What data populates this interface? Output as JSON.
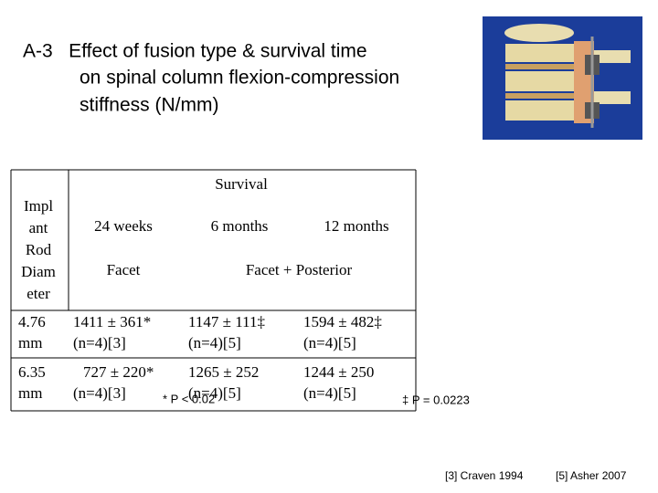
{
  "title": [
    "A-3   Effect of fusion type & survival time",
    "on spinal column flexion-compression",
    "stiffness (N/mm)"
  ],
  "table": {
    "corner": [
      "Impl",
      "ant",
      "Rod",
      "Diam",
      "eter"
    ],
    "group_header": "Survival",
    "columns": [
      "24 weeks",
      "6 months",
      "12 months"
    ],
    "fusion": [
      "Facet",
      "Facet + Posterior"
    ],
    "rows": [
      {
        "label": [
          "4.76",
          "mm"
        ],
        "cells": [
          [
            "1411 ± 361*",
            "(n=4)[3]"
          ],
          [
            "1147 ± 111‡",
            "(n=4)[5]"
          ],
          [
            "1594 ± 482‡",
            "(n=4)[5]"
          ]
        ]
      },
      {
        "label": [
          "6.35",
          "mm"
        ],
        "cells": [
          [
            "727 ± 220*",
            "(n=4)[3]"
          ],
          [
            "1265 ± 252",
            "(n=4)[5]"
          ],
          [
            "1244 ± 250",
            "(n=4)[5]"
          ]
        ]
      }
    ]
  },
  "footnotes": [
    "* P < 0.02",
    "‡ P = 0.0223"
  ],
  "references": [
    "[3] Craven 1994",
    "[5] Asher 2007"
  ]
}
